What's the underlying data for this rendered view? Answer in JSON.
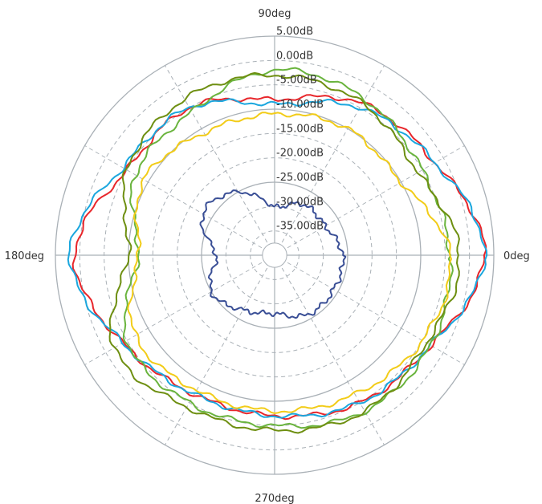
{
  "chart_data": {
    "type": "polar-line",
    "title": "",
    "radial_axis": {
      "unit": "dB",
      "range": [
        -40,
        5
      ],
      "ticks": [
        5,
        0,
        -5,
        -10,
        -15,
        -20,
        -25,
        -30,
        -35
      ],
      "tick_labels": [
        "5.00dB",
        "0.00dB",
        "-5.00dB",
        "-10.00dB",
        "-15.00dB",
        "-20.00dB",
        "-25.00dB",
        "-30.00dB",
        "-35.00dB"
      ],
      "solid_rings": [
        5,
        -10,
        -25
      ],
      "dashed_rings": [
        0,
        -5,
        -15,
        -20,
        -30,
        -35
      ]
    },
    "angular_axis": {
      "unit": "deg",
      "spoke_step_deg": 30,
      "labels": [
        {
          "angle": 0,
          "text": "0deg"
        },
        {
          "angle": 90,
          "text": "90deg"
        },
        {
          "angle": 180,
          "text": "180deg"
        },
        {
          "angle": 270,
          "text": "270deg"
        }
      ]
    },
    "grid": true,
    "legend": "none",
    "angles": [
      0,
      30,
      60,
      90,
      120,
      150,
      180,
      210,
      240,
      270,
      300,
      330,
      360
    ],
    "series": [
      {
        "color": "#e8262b",
        "values": [
          3,
          -2,
          -4,
          -8,
          -5,
          -5,
          1,
          -4,
          -7,
          -7,
          -5,
          -3,
          3
        ]
      },
      {
        "color": "#1ba7de",
        "values": [
          3,
          -2,
          -5,
          -9,
          -5,
          -4,
          2,
          -4,
          -7,
          -7,
          -5,
          -3,
          3
        ]
      },
      {
        "color": "#6ab43e",
        "values": [
          -4,
          -5,
          -3,
          -2,
          -6,
          -7,
          -12,
          -5,
          -5,
          -5,
          -3,
          -3,
          -4
        ]
      },
      {
        "color": "#6e8f11",
        "values": [
          -2,
          -6,
          -4,
          -3,
          -3,
          -5,
          -10,
          -2,
          -4,
          -4,
          -3,
          -4,
          -2
        ]
      },
      {
        "color": "#f2cc18",
        "values": [
          -4,
          -10,
          -10,
          -11,
          -11,
          -9,
          -12,
          -7,
          -8,
          -8,
          -7,
          -5,
          -4
        ]
      },
      {
        "color": "#3a4f96",
        "values": [
          -26,
          -28,
          -28,
          -30,
          -25,
          -23,
          -28,
          -25,
          -27,
          -28,
          -26,
          -26,
          -26
        ]
      }
    ]
  }
}
